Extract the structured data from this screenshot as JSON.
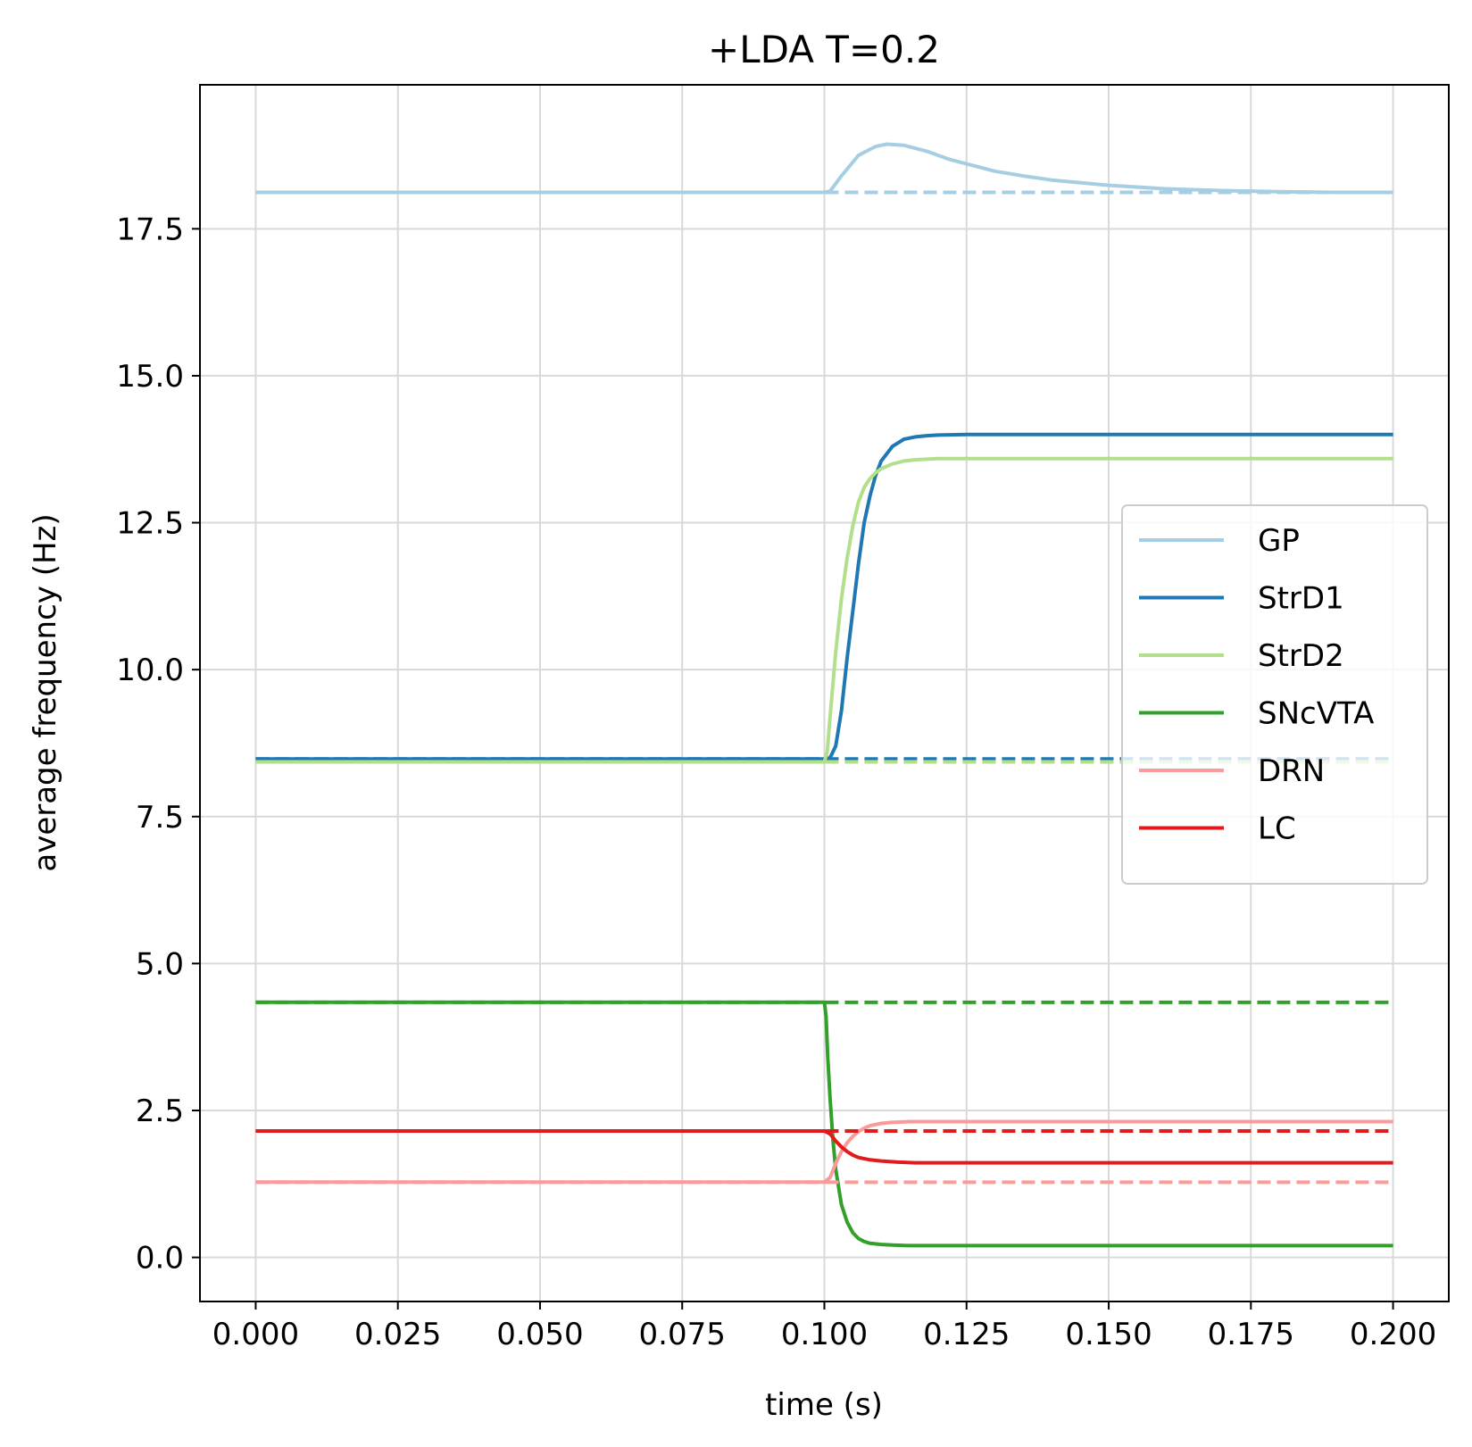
{
  "chart_data": {
    "type": "line",
    "title": "+LDA T=0.2",
    "xlabel": "time (s)",
    "ylabel": "average frequency (Hz)",
    "xlim": [
      -0.0098,
      0.2098
    ],
    "ylim": [
      -0.75,
      19.95
    ],
    "xticks": [
      0.0,
      0.025,
      0.05,
      0.075,
      0.1,
      0.125,
      0.15,
      0.175,
      0.2
    ],
    "xtick_labels": [
      "0.000",
      "0.025",
      "0.050",
      "0.075",
      "0.100",
      "0.125",
      "0.150",
      "0.175",
      "0.200"
    ],
    "yticks": [
      0.0,
      2.5,
      5.0,
      7.5,
      10.0,
      12.5,
      15.0,
      17.5
    ],
    "ytick_labels": [
      "0.0",
      "2.5",
      "5.0",
      "7.5",
      "10.0",
      "12.5",
      "15.0",
      "17.5"
    ],
    "grid": true,
    "legend_position": "center-right",
    "series": [
      {
        "name": "GP",
        "color": "#a6cee3",
        "x": [
          0,
          0.1,
          0.101,
          0.103,
          0.106,
          0.109,
          0.111,
          0.114,
          0.118,
          0.122,
          0.126,
          0.13,
          0.135,
          0.14,
          0.15,
          0.16,
          0.17,
          0.18,
          0.19,
          0.2
        ],
        "y": [
          18.12,
          18.12,
          18.14,
          18.4,
          18.75,
          18.9,
          18.94,
          18.92,
          18.82,
          18.68,
          18.58,
          18.48,
          18.4,
          18.33,
          18.24,
          18.18,
          18.15,
          18.13,
          18.12,
          18.12
        ],
        "baseline": 18.12
      },
      {
        "name": "StrD1",
        "color": "#1f78b4",
        "x": [
          0,
          0.1,
          0.101,
          0.102,
          0.103,
          0.104,
          0.105,
          0.106,
          0.107,
          0.108,
          0.109,
          0.11,
          0.112,
          0.114,
          0.116,
          0.118,
          0.12,
          0.125,
          0.13,
          0.14,
          0.2
        ],
        "y": [
          8.48,
          8.48,
          8.5,
          8.7,
          9.3,
          10.2,
          11.0,
          11.8,
          12.5,
          12.95,
          13.3,
          13.55,
          13.8,
          13.92,
          13.96,
          13.98,
          13.99,
          14.0,
          14.0,
          14.0,
          14.0
        ],
        "baseline": 8.48
      },
      {
        "name": "StrD2",
        "color": "#b2df8a",
        "x": [
          0,
          0.1,
          0.1005,
          0.101,
          0.102,
          0.103,
          0.104,
          0.105,
          0.106,
          0.107,
          0.108,
          0.109,
          0.11,
          0.112,
          0.114,
          0.116,
          0.118,
          0.12,
          0.125,
          0.13,
          0.2
        ],
        "y": [
          8.43,
          8.43,
          8.6,
          9.2,
          10.3,
          11.2,
          11.9,
          12.45,
          12.85,
          13.1,
          13.25,
          13.35,
          13.42,
          13.5,
          13.55,
          13.57,
          13.58,
          13.59,
          13.59,
          13.59,
          13.59
        ],
        "baseline": 8.43
      },
      {
        "name": "SNcVTA",
        "color": "#33a02c",
        "x": [
          0,
          0.1,
          0.1003,
          0.1006,
          0.101,
          0.1015,
          0.102,
          0.103,
          0.104,
          0.105,
          0.106,
          0.107,
          0.108,
          0.11,
          0.112,
          0.115,
          0.12,
          0.13,
          0.2
        ],
        "y": [
          4.34,
          4.34,
          4.1,
          3.4,
          2.7,
          2.0,
          1.5,
          0.9,
          0.6,
          0.42,
          0.32,
          0.27,
          0.24,
          0.22,
          0.21,
          0.2,
          0.2,
          0.2,
          0.2
        ],
        "baseline": 4.34
      },
      {
        "name": "DRN",
        "color": "#fb9a99",
        "x": [
          0,
          0.1,
          0.101,
          0.102,
          0.103,
          0.104,
          0.105,
          0.106,
          0.107,
          0.108,
          0.11,
          0.112,
          0.115,
          0.12,
          0.13,
          0.2
        ],
        "y": [
          1.28,
          1.28,
          1.36,
          1.6,
          1.8,
          1.95,
          2.06,
          2.14,
          2.2,
          2.24,
          2.28,
          2.3,
          2.31,
          2.31,
          2.31,
          2.31
        ],
        "baseline": 1.28
      },
      {
        "name": "LC",
        "color": "#e31a1c",
        "x": [
          0,
          0.1,
          0.101,
          0.102,
          0.103,
          0.104,
          0.105,
          0.106,
          0.108,
          0.11,
          0.113,
          0.116,
          0.12,
          0.13,
          0.2
        ],
        "y": [
          2.15,
          2.15,
          2.1,
          1.98,
          1.88,
          1.8,
          1.74,
          1.7,
          1.66,
          1.64,
          1.62,
          1.61,
          1.61,
          1.61,
          1.61
        ],
        "baseline": 2.15
      }
    ]
  }
}
